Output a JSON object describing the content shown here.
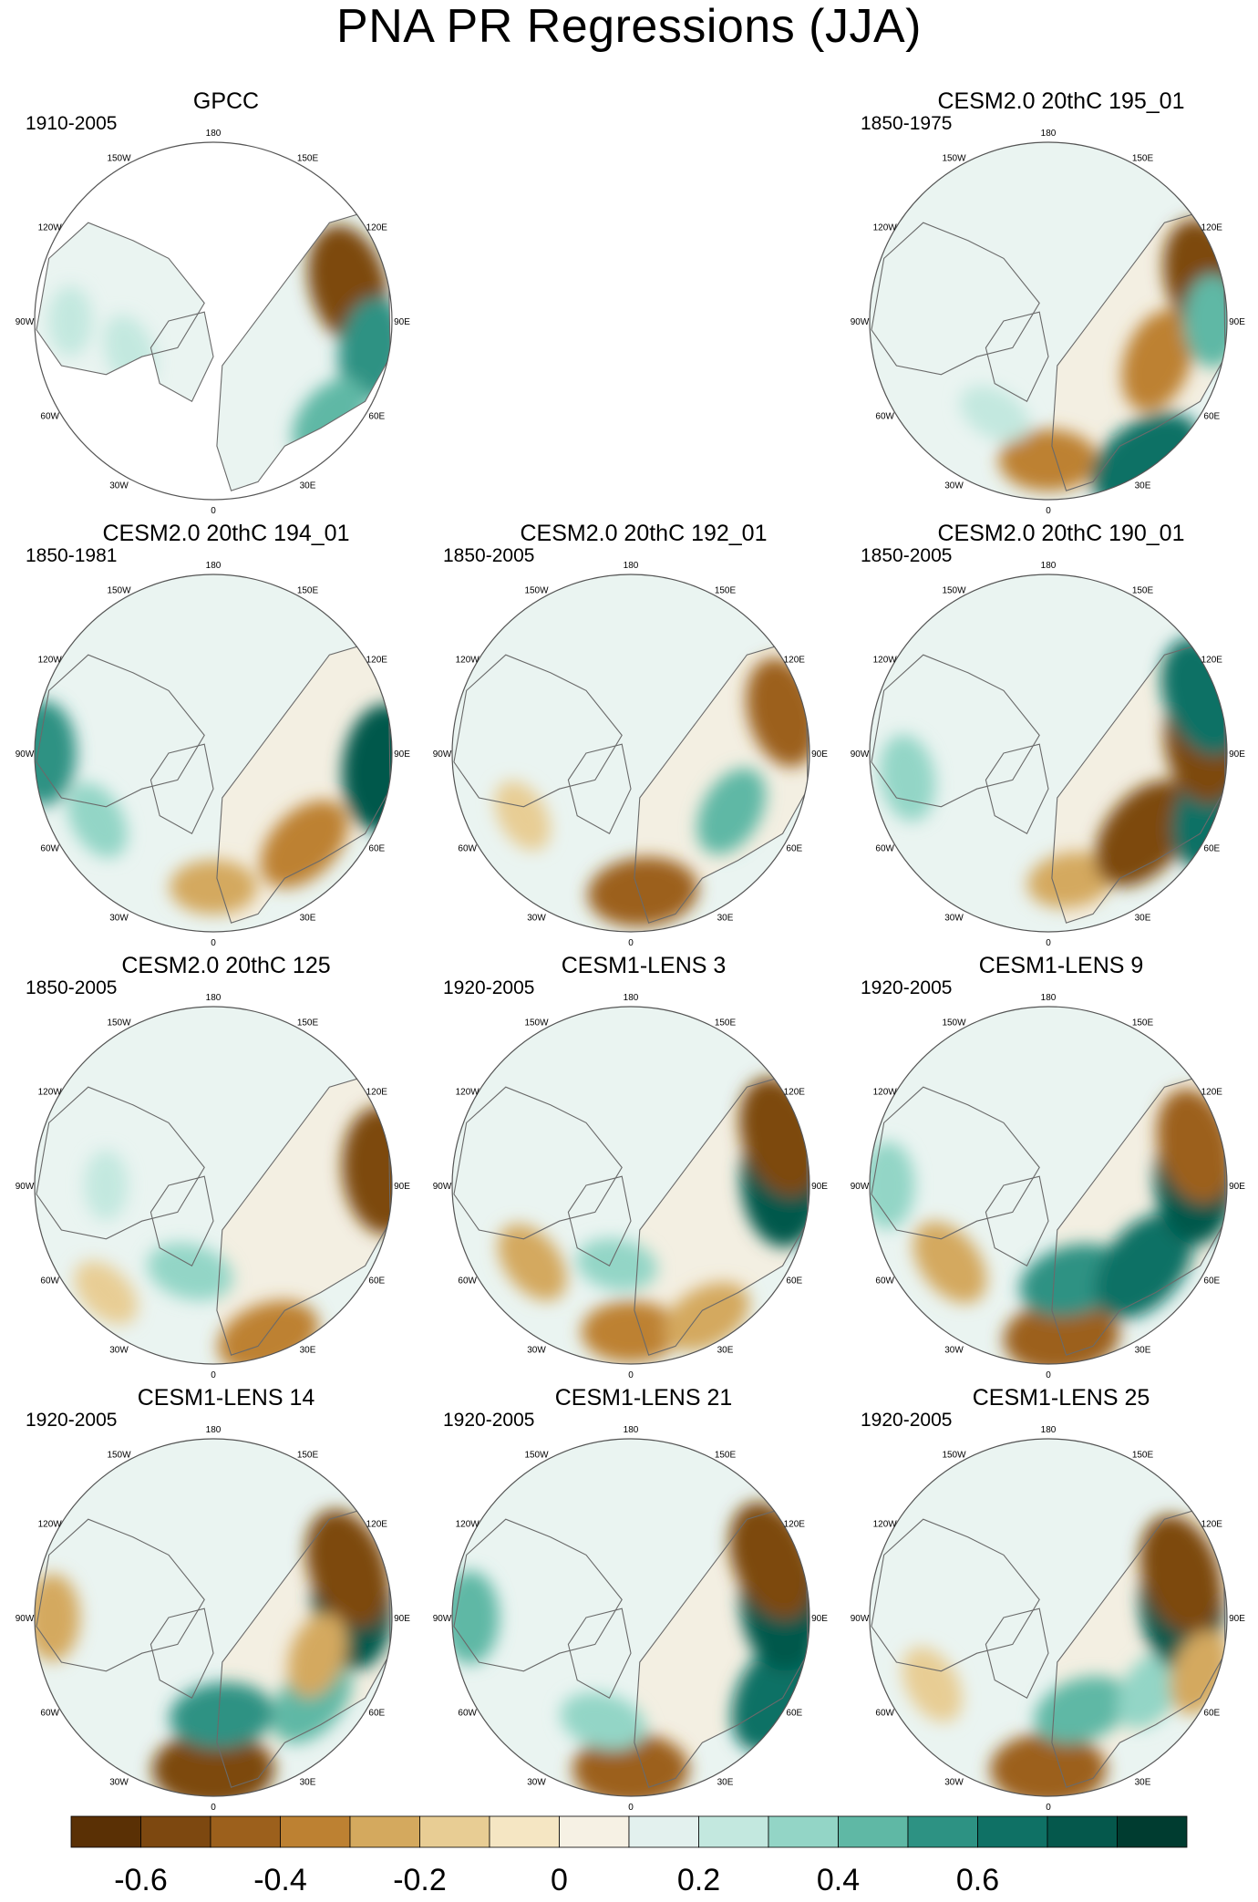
{
  "title": "PNA PR Regressions (JJA)",
  "lon_labels": [
    "180",
    "150E",
    "120E",
    "90E",
    "60E",
    "30E",
    "0",
    "30W",
    "60W",
    "90W",
    "120W",
    "150W"
  ],
  "colorbar": {
    "colors": [
      "#5a3005",
      "#7d4810",
      "#9c601c",
      "#bd8132",
      "#d4a95e",
      "#e8cd94",
      "#f5e6c3",
      "#f6f1e4",
      "#e3f1ee",
      "#c3e8df",
      "#93d5c6",
      "#5fb8a5",
      "#2d9283",
      "#0f7165",
      "#05584c",
      "#003c30"
    ],
    "tick_labels": [
      "-0.6",
      "-0.4",
      "-0.2",
      "0",
      "0.2",
      "0.4",
      "0.6"
    ]
  },
  "chart_data": {
    "type": "heatmap",
    "title": "PNA PR Regressions (JJA)",
    "projection": "north polar stereographic",
    "color_scale_levels": [
      -0.7,
      -0.6,
      -0.5,
      -0.4,
      -0.3,
      -0.2,
      -0.1,
      0,
      0.1,
      0.2,
      0.3,
      0.4,
      0.5,
      0.6,
      0.7
    ],
    "panels": [
      {
        "name": "GPCC",
        "period": "1910-2005",
        "col": 0,
        "row": 0,
        "land_only": true,
        "features": [
          {
            "lon": 75,
            "r": 0.78,
            "v": -0.6
          },
          {
            "lon": 100,
            "r": 0.9,
            "v": 0.45
          },
          {
            "lon": 130,
            "r": 0.85,
            "v": 0.35
          },
          {
            "lon": 250,
            "r": 0.5,
            "v": 0.2
          },
          {
            "lon": 270,
            "r": 0.8,
            "v": 0.15
          }
        ]
      },
      {
        "name": "CESM2.0 20thC 195_01",
        "period": "1850-1975",
        "col": 2,
        "row": 0,
        "land_only": false,
        "features": [
          {
            "lon": 180,
            "r": 0.78,
            "v": -0.4
          },
          {
            "lon": 145,
            "r": 0.95,
            "v": 0.6
          },
          {
            "lon": 110,
            "r": 0.65,
            "v": -0.45
          },
          {
            "lon": 75,
            "r": 0.9,
            "v": -0.6
          },
          {
            "lon": 90,
            "r": 0.92,
            "v": 0.35
          },
          {
            "lon": 210,
            "r": 0.6,
            "v": 0.2
          }
        ]
      },
      {
        "name": "CESM2.0 20thC 194_01",
        "period": "1850-1981",
        "col": 0,
        "row": 1,
        "land_only": false,
        "features": [
          {
            "lon": 180,
            "r": 0.75,
            "v": -0.3
          },
          {
            "lon": 135,
            "r": 0.72,
            "v": -0.45
          },
          {
            "lon": 95,
            "r": 0.95,
            "v": 0.65
          },
          {
            "lon": 270,
            "r": 0.95,
            "v": 0.45
          },
          {
            "lon": 240,
            "r": 0.75,
            "v": 0.25
          }
        ]
      },
      {
        "name": "CESM2.0 20thC 192_01",
        "period": "1850-2005",
        "col": 1,
        "row": 1,
        "land_only": false,
        "features": [
          {
            "lon": 175,
            "r": 0.78,
            "v": -0.5
          },
          {
            "lon": 120,
            "r": 0.65,
            "v": 0.35
          },
          {
            "lon": 75,
            "r": 0.88,
            "v": -0.5
          },
          {
            "lon": 240,
            "r": 0.7,
            "v": -0.2
          }
        ]
      },
      {
        "name": "CESM2.0 20thC 190_01",
        "period": "1850-2005",
        "col": 2,
        "row": 1,
        "land_only": false,
        "features": [
          {
            "lon": 170,
            "r": 0.72,
            "v": -0.3
          },
          {
            "lon": 130,
            "r": 0.7,
            "v": -0.6
          },
          {
            "lon": 110,
            "r": 0.97,
            "v": 0.55
          },
          {
            "lon": 85,
            "r": 0.88,
            "v": -0.65
          },
          {
            "lon": 70,
            "r": 0.92,
            "v": 0.6
          },
          {
            "lon": 260,
            "r": 0.8,
            "v": 0.3
          }
        ]
      },
      {
        "name": "CESM2.0 20thC 125",
        "period": "1850-2005",
        "col": 0,
        "row": 2,
        "land_only": false,
        "features": [
          {
            "lon": 160,
            "r": 0.9,
            "v": -0.45
          },
          {
            "lon": 195,
            "r": 0.5,
            "v": 0.3
          },
          {
            "lon": 85,
            "r": 0.95,
            "v": -0.65
          },
          {
            "lon": 225,
            "r": 0.85,
            "v": -0.2
          },
          {
            "lon": 270,
            "r": 0.6,
            "v": 0.15
          }
        ]
      },
      {
        "name": "CESM1-LENS 3",
        "period": "1920-2005",
        "col": 1,
        "row": 2,
        "land_only": false,
        "features": [
          {
            "lon": 180,
            "r": 0.82,
            "v": -0.4
          },
          {
            "lon": 150,
            "r": 0.85,
            "v": -0.35
          },
          {
            "lon": 190,
            "r": 0.45,
            "v": 0.25
          },
          {
            "lon": 88,
            "r": 0.85,
            "v": 0.7
          },
          {
            "lon": 72,
            "r": 0.88,
            "v": -0.6
          },
          {
            "lon": 232,
            "r": 0.7,
            "v": -0.3
          }
        ]
      },
      {
        "name": "CESM1-LENS 9",
        "period": "1920-2005",
        "col": 2,
        "row": 2,
        "land_only": false,
        "features": [
          {
            "lon": 175,
            "r": 0.85,
            "v": -0.55
          },
          {
            "lon": 165,
            "r": 0.55,
            "v": 0.5
          },
          {
            "lon": 130,
            "r": 0.7,
            "v": 0.6
          },
          {
            "lon": 88,
            "r": 0.82,
            "v": 0.65
          },
          {
            "lon": 75,
            "r": 0.85,
            "v": -0.55
          },
          {
            "lon": 232,
            "r": 0.7,
            "v": -0.35
          },
          {
            "lon": 270,
            "r": 0.9,
            "v": 0.3
          }
        ]
      },
      {
        "name": "CESM1-LENS 14",
        "period": "1920-2005",
        "col": 0,
        "row": 3,
        "land_only": false,
        "features": [
          {
            "lon": 180,
            "r": 0.85,
            "v": -0.6
          },
          {
            "lon": 175,
            "r": 0.55,
            "v": 0.45
          },
          {
            "lon": 130,
            "r": 0.72,
            "v": 0.4
          },
          {
            "lon": 85,
            "r": 0.78,
            "v": 0.65
          },
          {
            "lon": 70,
            "r": 0.8,
            "v": -0.6
          },
          {
            "lon": 110,
            "r": 0.62,
            "v": -0.3
          },
          {
            "lon": 270,
            "r": 0.9,
            "v": -0.3
          }
        ]
      },
      {
        "name": "CESM1-LENS 21",
        "period": "1920-2005",
        "col": 1,
        "row": 3,
        "land_only": false,
        "features": [
          {
            "lon": 180,
            "r": 0.85,
            "v": -0.55
          },
          {
            "lon": 195,
            "r": 0.6,
            "v": 0.3
          },
          {
            "lon": 118,
            "r": 0.92,
            "v": 0.6
          },
          {
            "lon": 85,
            "r": 0.85,
            "v": 0.7
          },
          {
            "lon": 68,
            "r": 0.85,
            "v": -0.6
          },
          {
            "lon": 270,
            "r": 0.9,
            "v": 0.35
          }
        ]
      },
      {
        "name": "CESM1-LENS 25",
        "period": "1920-2005",
        "col": 2,
        "row": 3,
        "land_only": false,
        "features": [
          {
            "lon": 180,
            "r": 0.85,
            "v": -0.55
          },
          {
            "lon": 160,
            "r": 0.55,
            "v": 0.4
          },
          {
            "lon": 125,
            "r": 0.7,
            "v": 0.3
          },
          {
            "lon": 85,
            "r": 0.75,
            "v": 0.7
          },
          {
            "lon": 72,
            "r": 0.78,
            "v": -0.6
          },
          {
            "lon": 110,
            "r": 0.9,
            "v": -0.3
          },
          {
            "lon": 240,
            "r": 0.75,
            "v": -0.25
          }
        ]
      }
    ]
  }
}
